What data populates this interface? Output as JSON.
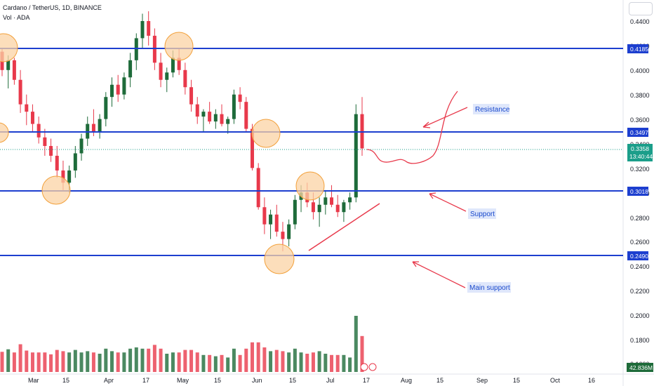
{
  "header": {
    "title": "Cardano / TetherUS, 1D, BINANCE",
    "volume_label": "Vol · ADA"
  },
  "colors": {
    "up": "#1e6b3a",
    "down": "#e8394b",
    "line": "#1d3fcf",
    "circle_fill": "#fbd3a4",
    "circle_stroke": "#f2a03a",
    "note": "#dfe7fb",
    "arrow": "#e8394b",
    "current": "#1b9e8a"
  },
  "chart_data": {
    "type": "candlestick",
    "title": "Cardano / TetherUS, 1D, BINANCE",
    "y_axis_ticks": [
      "0.4400",
      "0.4200",
      "0.4000",
      "0.3800",
      "0.3600",
      "0.3400",
      "0.3200",
      "0.3000",
      "0.2800",
      "0.2600",
      "0.2400",
      "0.2200",
      "0.2000",
      "0.1800",
      "0.1600"
    ],
    "x_axis_ticks": [
      "Mar",
      "15",
      "Apr",
      "17",
      "May",
      "15",
      "Jun",
      "15",
      "Jul",
      "17",
      "Aug",
      "15",
      "Sep",
      "15",
      "Oct",
      "16"
    ],
    "horizontal_levels": [
      {
        "value": "0.4185"
      },
      {
        "value": "0.3497"
      },
      {
        "value": "0.3018"
      },
      {
        "value": "0.2490"
      }
    ],
    "current_price": "0.3358",
    "countdown": "13:40:44",
    "volume_value": "42.836M",
    "annotations": [
      "Resistance",
      "Support",
      "Main support"
    ],
    "ohlc": [
      [
        0.415,
        0.418,
        0.395,
        0.4
      ],
      [
        0.4,
        0.412,
        0.385,
        0.408
      ],
      [
        0.408,
        0.41,
        0.388,
        0.392
      ],
      [
        0.392,
        0.4,
        0.365,
        0.372
      ],
      [
        0.372,
        0.38,
        0.355,
        0.366
      ],
      [
        0.366,
        0.372,
        0.35,
        0.356
      ],
      [
        0.356,
        0.362,
        0.34,
        0.345
      ],
      [
        0.345,
        0.352,
        0.33,
        0.338
      ],
      [
        0.338,
        0.344,
        0.325,
        0.33
      ],
      [
        0.33,
        0.338,
        0.312,
        0.318
      ],
      [
        0.318,
        0.326,
        0.302,
        0.308
      ],
      [
        0.308,
        0.322,
        0.3,
        0.318
      ],
      [
        0.318,
        0.338,
        0.312,
        0.332
      ],
      [
        0.332,
        0.348,
        0.326,
        0.344
      ],
      [
        0.344,
        0.362,
        0.338,
        0.356
      ],
      [
        0.356,
        0.368,
        0.346,
        0.35
      ],
      [
        0.35,
        0.364,
        0.344,
        0.36
      ],
      [
        0.36,
        0.382,
        0.354,
        0.378
      ],
      [
        0.378,
        0.394,
        0.37,
        0.388
      ],
      [
        0.388,
        0.396,
        0.374,
        0.38
      ],
      [
        0.38,
        0.398,
        0.376,
        0.394
      ],
      [
        0.394,
        0.414,
        0.386,
        0.408
      ],
      [
        0.408,
        0.43,
        0.4,
        0.426
      ],
      [
        0.426,
        0.446,
        0.418,
        0.44
      ],
      [
        0.44,
        0.448,
        0.42,
        0.428
      ],
      [
        0.428,
        0.434,
        0.4,
        0.406
      ],
      [
        0.406,
        0.414,
        0.386,
        0.392
      ],
      [
        0.392,
        0.402,
        0.382,
        0.398
      ],
      [
        0.398,
        0.416,
        0.394,
        0.41
      ],
      [
        0.41,
        0.418,
        0.396,
        0.4
      ],
      [
        0.4,
        0.406,
        0.38,
        0.386
      ],
      [
        0.386,
        0.392,
        0.366,
        0.372
      ],
      [
        0.372,
        0.378,
        0.356,
        0.362
      ],
      [
        0.362,
        0.368,
        0.35,
        0.366
      ],
      [
        0.366,
        0.374,
        0.356,
        0.358
      ],
      [
        0.358,
        0.368,
        0.352,
        0.364
      ],
      [
        0.364,
        0.372,
        0.354,
        0.356
      ],
      [
        0.356,
        0.362,
        0.348,
        0.36
      ],
      [
        0.36,
        0.384,
        0.356,
        0.38
      ],
      [
        0.38,
        0.386,
        0.368,
        0.374
      ],
      [
        0.374,
        0.378,
        0.35,
        0.352
      ],
      [
        0.352,
        0.356,
        0.318,
        0.32
      ],
      [
        0.32,
        0.324,
        0.286,
        0.288
      ],
      [
        0.288,
        0.296,
        0.266,
        0.274
      ],
      [
        0.274,
        0.286,
        0.262,
        0.282
      ],
      [
        0.282,
        0.29,
        0.264,
        0.268
      ],
      [
        0.268,
        0.276,
        0.252,
        0.262
      ],
      [
        0.262,
        0.278,
        0.256,
        0.274
      ],
      [
        0.274,
        0.298,
        0.27,
        0.294
      ],
      [
        0.294,
        0.306,
        0.284,
        0.3
      ],
      [
        0.3,
        0.308,
        0.288,
        0.292
      ],
      [
        0.292,
        0.3,
        0.278,
        0.284
      ],
      [
        0.284,
        0.296,
        0.272,
        0.29
      ],
      [
        0.29,
        0.302,
        0.282,
        0.296
      ],
      [
        0.296,
        0.306,
        0.288,
        0.29
      ],
      [
        0.29,
        0.298,
        0.28,
        0.284
      ],
      [
        0.284,
        0.294,
        0.276,
        0.292
      ],
      [
        0.292,
        0.3,
        0.286,
        0.296
      ],
      [
        0.296,
        0.372,
        0.292,
        0.364
      ],
      [
        0.364,
        0.378,
        0.33,
        0.336
      ]
    ]
  }
}
